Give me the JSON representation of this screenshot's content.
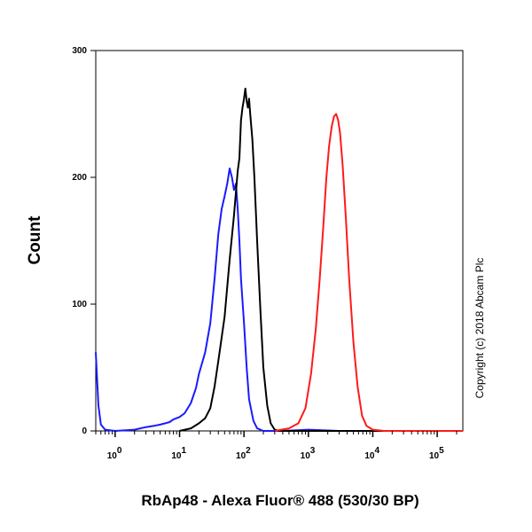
{
  "chart_data": {
    "type": "line",
    "title": "",
    "xlabel": "RbAp48 - Alexa Fluor® 488 (530/30 BP)",
    "ylabel": "Count",
    "x_scale": "log",
    "xlim": [
      0.5,
      250000
    ],
    "ylim": [
      0,
      300
    ],
    "y_ticks": [
      0,
      100,
      200,
      300
    ],
    "x_ticks": [
      {
        "value": 1,
        "base": "10",
        "exp": "0"
      },
      {
        "value": 10,
        "base": "10",
        "exp": "1"
      },
      {
        "value": 100,
        "base": "10",
        "exp": "2"
      },
      {
        "value": 1000,
        "base": "10",
        "exp": "3"
      },
      {
        "value": 10000,
        "base": "10",
        "exp": "4"
      },
      {
        "value": 100000,
        "base": "10",
        "exp": "5"
      }
    ],
    "grid": false,
    "legend": "none",
    "series": [
      {
        "color": "#1a1aff",
        "points": [
          [
            0.5,
            62
          ],
          [
            0.55,
            20
          ],
          [
            0.6,
            5
          ],
          [
            0.7,
            1
          ],
          [
            1,
            0
          ],
          [
            2,
            1
          ],
          [
            3,
            3
          ],
          [
            4,
            4
          ],
          [
            5,
            5
          ],
          [
            6,
            6
          ],
          [
            7,
            7
          ],
          [
            8,
            9
          ],
          [
            10,
            11
          ],
          [
            12,
            14
          ],
          [
            15,
            22
          ],
          [
            18,
            34
          ],
          [
            20,
            45
          ],
          [
            25,
            62
          ],
          [
            30,
            85
          ],
          [
            35,
            120
          ],
          [
            40,
            155
          ],
          [
            45,
            175
          ],
          [
            50,
            185
          ],
          [
            55,
            195
          ],
          [
            60,
            207
          ],
          [
            65,
            200
          ],
          [
            70,
            190
          ],
          [
            75,
            195
          ],
          [
            80,
            175
          ],
          [
            85,
            150
          ],
          [
            90,
            120
          ],
          [
            100,
            85
          ],
          [
            110,
            50
          ],
          [
            120,
            25
          ],
          [
            140,
            8
          ],
          [
            160,
            2
          ],
          [
            200,
            0
          ],
          [
            400,
            0
          ],
          [
            1000,
            1
          ],
          [
            3000,
            0
          ],
          [
            10000,
            0
          ],
          [
            250000,
            0
          ]
        ]
      },
      {
        "color": "#000000",
        "points": [
          [
            10,
            0
          ],
          [
            15,
            2
          ],
          [
            20,
            6
          ],
          [
            25,
            10
          ],
          [
            30,
            18
          ],
          [
            35,
            35
          ],
          [
            40,
            55
          ],
          [
            50,
            90
          ],
          [
            60,
            135
          ],
          [
            70,
            170
          ],
          [
            80,
            205
          ],
          [
            85,
            215
          ],
          [
            90,
            245
          ],
          [
            95,
            255
          ],
          [
            100,
            262
          ],
          [
            105,
            270
          ],
          [
            110,
            260
          ],
          [
            115,
            255
          ],
          [
            120,
            262
          ],
          [
            125,
            250
          ],
          [
            135,
            230
          ],
          [
            145,
            200
          ],
          [
            160,
            150
          ],
          [
            180,
            95
          ],
          [
            200,
            50
          ],
          [
            230,
            20
          ],
          [
            260,
            6
          ],
          [
            300,
            1
          ],
          [
            350,
            0
          ],
          [
            250000,
            0
          ]
        ]
      },
      {
        "color": "#ff1a1a",
        "points": [
          [
            300,
            0
          ],
          [
            500,
            2
          ],
          [
            700,
            6
          ],
          [
            900,
            18
          ],
          [
            1100,
            45
          ],
          [
            1300,
            80
          ],
          [
            1500,
            120
          ],
          [
            1700,
            160
          ],
          [
            1900,
            200
          ],
          [
            2100,
            225
          ],
          [
            2300,
            240
          ],
          [
            2500,
            248
          ],
          [
            2700,
            250
          ],
          [
            2900,
            245
          ],
          [
            3100,
            235
          ],
          [
            3400,
            210
          ],
          [
            3800,
            170
          ],
          [
            4300,
            120
          ],
          [
            5000,
            70
          ],
          [
            5800,
            35
          ],
          [
            6800,
            12
          ],
          [
            8000,
            4
          ],
          [
            10000,
            1
          ],
          [
            15000,
            0
          ],
          [
            250000,
            0
          ]
        ]
      }
    ]
  },
  "copyright": "Copyright (c) 2018 Abcam Plc"
}
